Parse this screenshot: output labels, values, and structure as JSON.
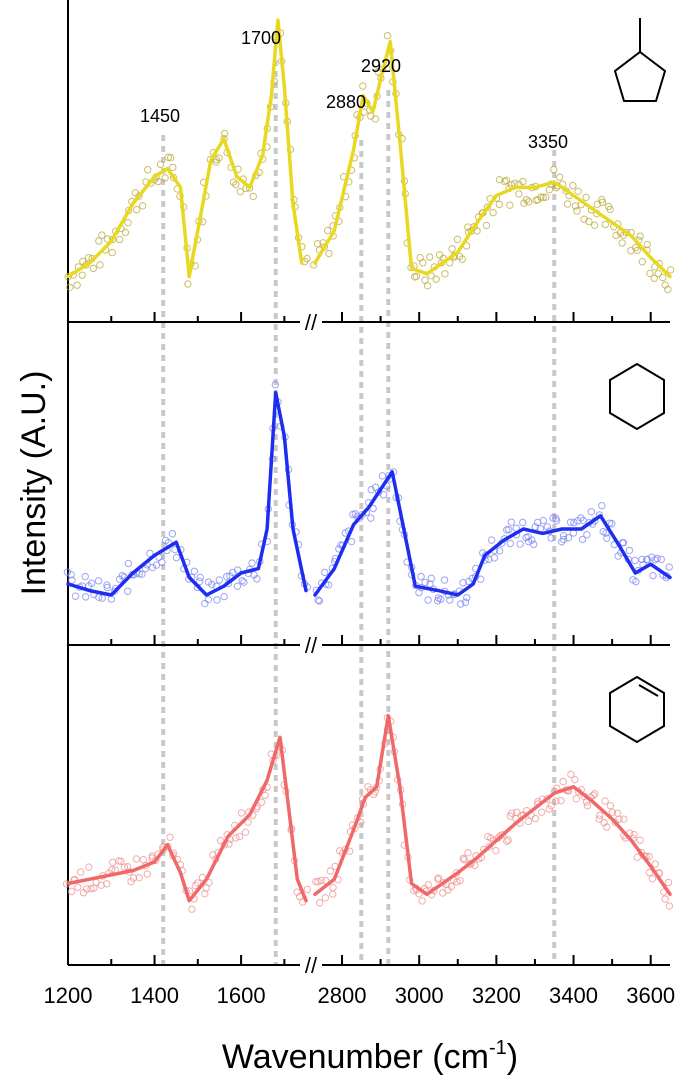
{
  "chart_data": {
    "type": "line",
    "xlabel_main": "Wavenumber (cm",
    "xlabel_sup": "-1",
    "xlabel_close": ")",
    "ylabel": "Intensity (A.U.)",
    "axis_break": "//",
    "x_ticks_left": [
      "1200",
      "1400",
      "1600"
    ],
    "x_ticks_right": [
      "2800",
      "3000",
      "3200",
      "3400",
      "3600"
    ],
    "xlim_left": [
      1200,
      1750
    ],
    "xlim_right": [
      2730,
      3650
    ],
    "peak_markers": [
      {
        "x": 1420,
        "label": "1450"
      },
      {
        "x": 1680,
        "label": "1700"
      },
      {
        "x": 2850,
        "label": "2880"
      },
      {
        "x": 2920,
        "label": "2920"
      },
      {
        "x": 3350,
        "label": "3350"
      }
    ],
    "series": [
      {
        "molecule_icon": "methylcyclopentane-icon",
        "color": "#e8d820",
        "scatter_color": "#b8a838",
        "values_left": [
          [
            1200,
            0.05
          ],
          [
            1250,
            0.1
          ],
          [
            1300,
            0.18
          ],
          [
            1350,
            0.32
          ],
          [
            1400,
            0.42
          ],
          [
            1430,
            0.45
          ],
          [
            1460,
            0.38
          ],
          [
            1480,
            0.05
          ],
          [
            1500,
            0.22
          ],
          [
            1530,
            0.48
          ],
          [
            1560,
            0.56
          ],
          [
            1590,
            0.42
          ],
          [
            1620,
            0.38
          ],
          [
            1650,
            0.5
          ],
          [
            1670,
            0.72
          ],
          [
            1685,
            1.0
          ],
          [
            1700,
            0.75
          ],
          [
            1720,
            0.32
          ],
          [
            1740,
            0.1
          ]
        ],
        "values_right": [
          [
            2730,
            0.1
          ],
          [
            2780,
            0.22
          ],
          [
            2830,
            0.52
          ],
          [
            2855,
            0.72
          ],
          [
            2880,
            0.66
          ],
          [
            2900,
            0.78
          ],
          [
            2925,
            0.92
          ],
          [
            2950,
            0.55
          ],
          [
            2980,
            0.08
          ],
          [
            3020,
            0.06
          ],
          [
            3100,
            0.14
          ],
          [
            3150,
            0.25
          ],
          [
            3200,
            0.35
          ],
          [
            3250,
            0.38
          ],
          [
            3300,
            0.38
          ],
          [
            3350,
            0.4
          ],
          [
            3400,
            0.35
          ],
          [
            3450,
            0.3
          ],
          [
            3500,
            0.25
          ],
          [
            3550,
            0.2
          ],
          [
            3600,
            0.12
          ],
          [
            3650,
            0.05
          ]
        ]
      },
      {
        "molecule_icon": "cyclohexane-icon",
        "color": "#1e2ef0",
        "scatter_color": "#7d85f0",
        "values_left": [
          [
            1200,
            0.05
          ],
          [
            1250,
            0.02
          ],
          [
            1300,
            0.0
          ],
          [
            1350,
            0.1
          ],
          [
            1400,
            0.18
          ],
          [
            1450,
            0.24
          ],
          [
            1480,
            0.08
          ],
          [
            1520,
            0.0
          ],
          [
            1560,
            0.04
          ],
          [
            1600,
            0.1
          ],
          [
            1640,
            0.12
          ],
          [
            1660,
            0.3
          ],
          [
            1680,
            0.92
          ],
          [
            1700,
            0.72
          ],
          [
            1720,
            0.3
          ],
          [
            1750,
            0.02
          ]
        ],
        "values_right": [
          [
            2730,
            0.0
          ],
          [
            2780,
            0.12
          ],
          [
            2830,
            0.32
          ],
          [
            2870,
            0.4
          ],
          [
            2900,
            0.48
          ],
          [
            2930,
            0.56
          ],
          [
            2960,
            0.3
          ],
          [
            2990,
            0.04
          ],
          [
            3050,
            0.02
          ],
          [
            3100,
            0.0
          ],
          [
            3140,
            0.05
          ],
          [
            3170,
            0.18
          ],
          [
            3220,
            0.25
          ],
          [
            3270,
            0.3
          ],
          [
            3320,
            0.28
          ],
          [
            3370,
            0.3
          ],
          [
            3420,
            0.3
          ],
          [
            3470,
            0.36
          ],
          [
            3520,
            0.22
          ],
          [
            3560,
            0.1
          ],
          [
            3600,
            0.14
          ],
          [
            3650,
            0.08
          ]
        ]
      },
      {
        "molecule_icon": "cyclohexene-icon",
        "color": "#f06868",
        "scatter_color": "#ee9090",
        "values_left": [
          [
            1200,
            0.1
          ],
          [
            1250,
            0.12
          ],
          [
            1300,
            0.14
          ],
          [
            1350,
            0.16
          ],
          [
            1400,
            0.2
          ],
          [
            1430,
            0.28
          ],
          [
            1460,
            0.15
          ],
          [
            1480,
            0.02
          ],
          [
            1520,
            0.12
          ],
          [
            1570,
            0.32
          ],
          [
            1620,
            0.42
          ],
          [
            1660,
            0.58
          ],
          [
            1690,
            0.78
          ],
          [
            1710,
            0.45
          ],
          [
            1730,
            0.12
          ],
          [
            1750,
            0.02
          ]
        ],
        "values_right": [
          [
            2730,
            0.05
          ],
          [
            2780,
            0.12
          ],
          [
            2830,
            0.35
          ],
          [
            2860,
            0.5
          ],
          [
            2890,
            0.55
          ],
          [
            2920,
            0.88
          ],
          [
            2950,
            0.55
          ],
          [
            2980,
            0.1
          ],
          [
            3020,
            0.05
          ],
          [
            3100,
            0.15
          ],
          [
            3150,
            0.22
          ],
          [
            3200,
            0.3
          ],
          [
            3250,
            0.38
          ],
          [
            3300,
            0.45
          ],
          [
            3350,
            0.52
          ],
          [
            3400,
            0.55
          ],
          [
            3450,
            0.48
          ],
          [
            3500,
            0.4
          ],
          [
            3550,
            0.3
          ],
          [
            3600,
            0.18
          ],
          [
            3650,
            0.05
          ]
        ]
      }
    ]
  }
}
